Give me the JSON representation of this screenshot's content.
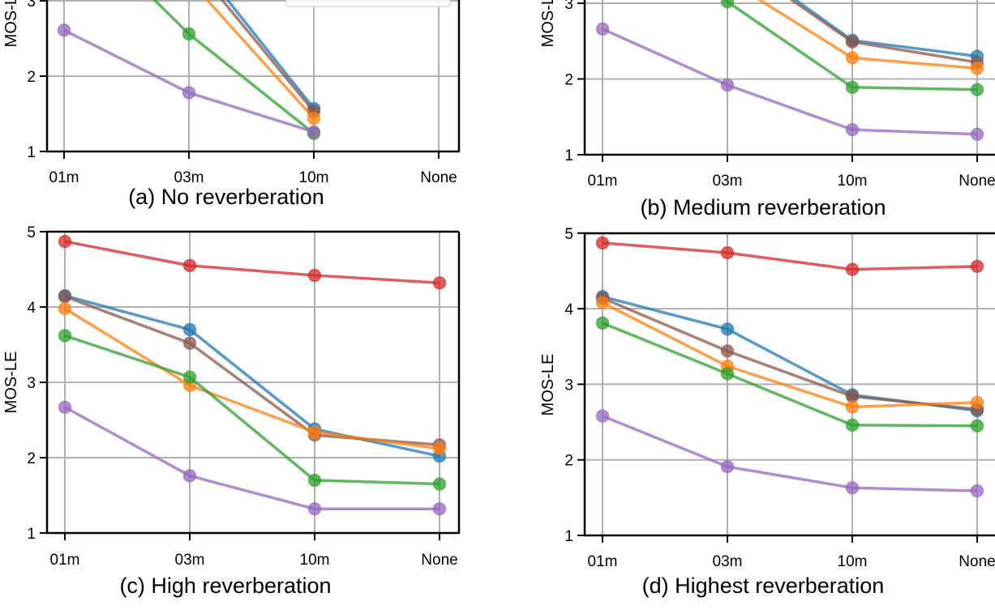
{
  "chart_data": [
    {
      "type": "line",
      "panel": "a",
      "title": "(a) No reverberation",
      "xlabel": "",
      "ylabel": "MOS-LE",
      "categories": [
        "01m",
        "03m",
        "10m",
        "None"
      ],
      "ylim": [
        1,
        5
      ],
      "yticks": [
        "1",
        "2",
        "3"
      ],
      "grid": true,
      "legend": "top-right (clipped)",
      "series": [
        {
          "name": "series-red",
          "color": "#d62728",
          "values": [
            null,
            null,
            null,
            null
          ]
        },
        {
          "name": "series-blue",
          "color": "#1f77b4",
          "values": [
            null,
            null,
            1.57,
            null
          ]
        },
        {
          "name": "series-brown",
          "color": "#8c564b",
          "values": [
            null,
            null,
            1.53,
            null
          ]
        },
        {
          "name": "series-orange",
          "color": "#ff7f0e",
          "values": [
            null,
            null,
            1.44,
            null
          ]
        },
        {
          "name": "series-green",
          "color": "#2ca02c",
          "values": [
            null,
            2.56,
            1.24,
            null
          ]
        },
        {
          "name": "series-purple",
          "color": "#9467bd",
          "values": [
            2.61,
            1.78,
            1.26,
            null
          ]
        }
      ]
    },
    {
      "type": "line",
      "panel": "b",
      "title": "(b) Medium reverberation",
      "xlabel": "",
      "ylabel": "MOS-LE",
      "categories": [
        "01m",
        "03m",
        "10m",
        "None"
      ],
      "ylim": [
        1,
        5
      ],
      "yticks": [
        "1",
        "2",
        "3"
      ],
      "grid": true,
      "series": [
        {
          "name": "series-red",
          "color": "#d62728",
          "values": [
            null,
            null,
            null,
            null
          ]
        },
        {
          "name": "series-blue",
          "color": "#1f77b4",
          "values": [
            null,
            null,
            2.51,
            2.3
          ]
        },
        {
          "name": "series-brown",
          "color": "#8c564b",
          "values": [
            null,
            null,
            2.49,
            2.22
          ]
        },
        {
          "name": "series-orange",
          "color": "#ff7f0e",
          "values": [
            null,
            null,
            2.28,
            2.14
          ]
        },
        {
          "name": "series-green",
          "color": "#2ca02c",
          "values": [
            null,
            3.02,
            1.89,
            1.86
          ]
        },
        {
          "name": "series-purple",
          "color": "#9467bd",
          "values": [
            2.66,
            1.92,
            1.33,
            1.27
          ]
        }
      ]
    },
    {
      "type": "line",
      "panel": "c",
      "title": "(c) High reverberation",
      "xlabel": "",
      "ylabel": "MOS-LE",
      "categories": [
        "01m",
        "03m",
        "10m",
        "None"
      ],
      "ylim": [
        1,
        5
      ],
      "yticks": [
        "1",
        "2",
        "3",
        "4",
        "5"
      ],
      "grid": true,
      "series": [
        {
          "name": "series-red",
          "color": "#d62728",
          "values": [
            4.87,
            4.55,
            4.42,
            4.32
          ]
        },
        {
          "name": "series-blue",
          "color": "#1f77b4",
          "values": [
            4.15,
            3.7,
            2.38,
            2.02
          ]
        },
        {
          "name": "series-brown",
          "color": "#8c564b",
          "values": [
            4.14,
            3.52,
            2.3,
            2.17
          ]
        },
        {
          "name": "series-orange",
          "color": "#ff7f0e",
          "values": [
            3.98,
            2.96,
            2.34,
            2.12
          ]
        },
        {
          "name": "series-green",
          "color": "#2ca02c",
          "values": [
            3.62,
            3.07,
            1.7,
            1.65
          ]
        },
        {
          "name": "series-purple",
          "color": "#9467bd",
          "values": [
            2.67,
            1.76,
            1.32,
            1.32
          ]
        }
      ]
    },
    {
      "type": "line",
      "panel": "d",
      "title": "(d) Highest reverberation",
      "xlabel": "",
      "ylabel": "MOS-LE",
      "categories": [
        "01m",
        "03m",
        "10m",
        "None"
      ],
      "ylim": [
        1,
        5
      ],
      "yticks": [
        "1",
        "2",
        "3",
        "4",
        "5"
      ],
      "grid": true,
      "series": [
        {
          "name": "series-red",
          "color": "#d62728",
          "values": [
            4.87,
            4.74,
            4.52,
            4.56
          ]
        },
        {
          "name": "series-blue",
          "color": "#1f77b4",
          "values": [
            4.16,
            3.73,
            2.86,
            2.65
          ]
        },
        {
          "name": "series-brown",
          "color": "#8c564b",
          "values": [
            4.14,
            3.44,
            2.84,
            2.67
          ]
        },
        {
          "name": "series-orange",
          "color": "#ff7f0e",
          "values": [
            4.08,
            3.24,
            2.7,
            2.76
          ]
        },
        {
          "name": "series-green",
          "color": "#2ca02c",
          "values": [
            3.81,
            3.14,
            2.46,
            2.45
          ]
        },
        {
          "name": "series-purple",
          "color": "#9467bd",
          "values": [
            2.58,
            1.91,
            1.63,
            1.59
          ]
        }
      ]
    }
  ]
}
